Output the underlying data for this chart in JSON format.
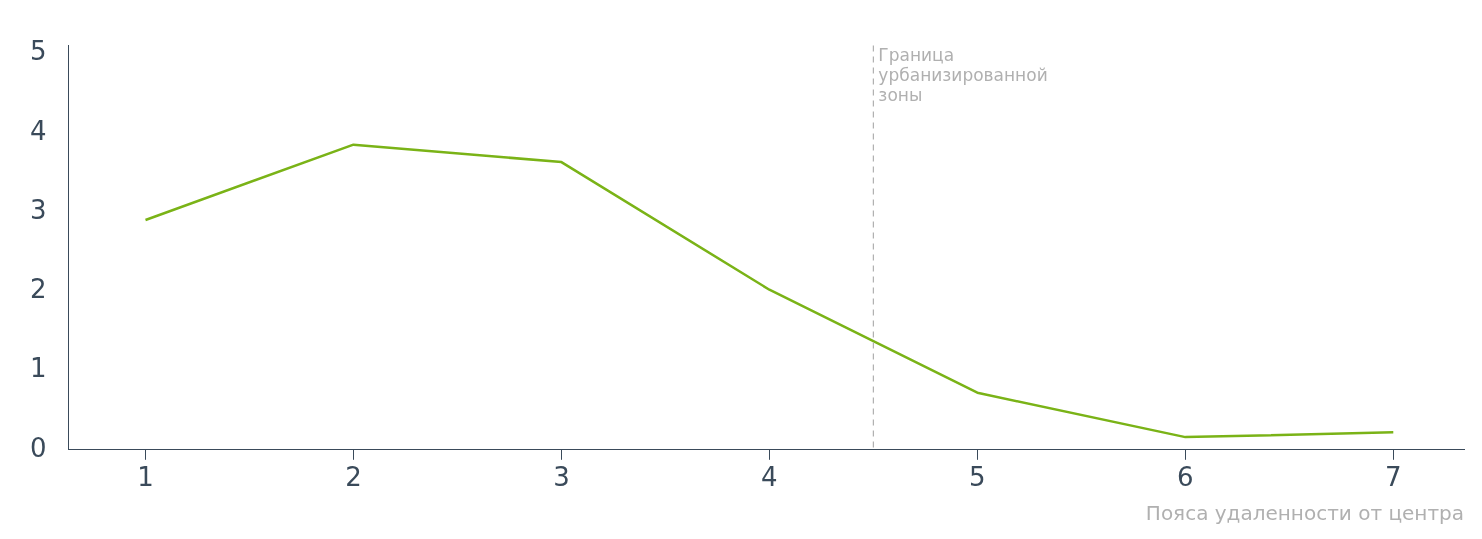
{
  "chart_data": {
    "type": "line",
    "xlabel": "Пояса удаленности от центра",
    "x": [
      1,
      2,
      3,
      4,
      5,
      6,
      7
    ],
    "series": [
      {
        "color": "#7ab317",
        "values": [
          2.9,
          3.85,
          3.63,
          2.02,
          0.72,
          0.16,
          0.22
        ]
      }
    ],
    "xlim": [
      0.63,
      7.34
    ],
    "xticks": [
      1,
      2,
      3,
      4,
      5,
      6,
      7
    ],
    "ylim": [
      0,
      5.1
    ],
    "yticks": [
      0,
      1,
      2,
      3,
      4,
      5
    ],
    "grid": false,
    "legend": false,
    "marker": "none",
    "line_style": "solid",
    "ref_lines": [
      {
        "axis": "x",
        "value": 4.5,
        "label": "Граница урбанизированной зоны",
        "color": "#b0b0b0",
        "line_style": "dashed"
      }
    ]
  }
}
